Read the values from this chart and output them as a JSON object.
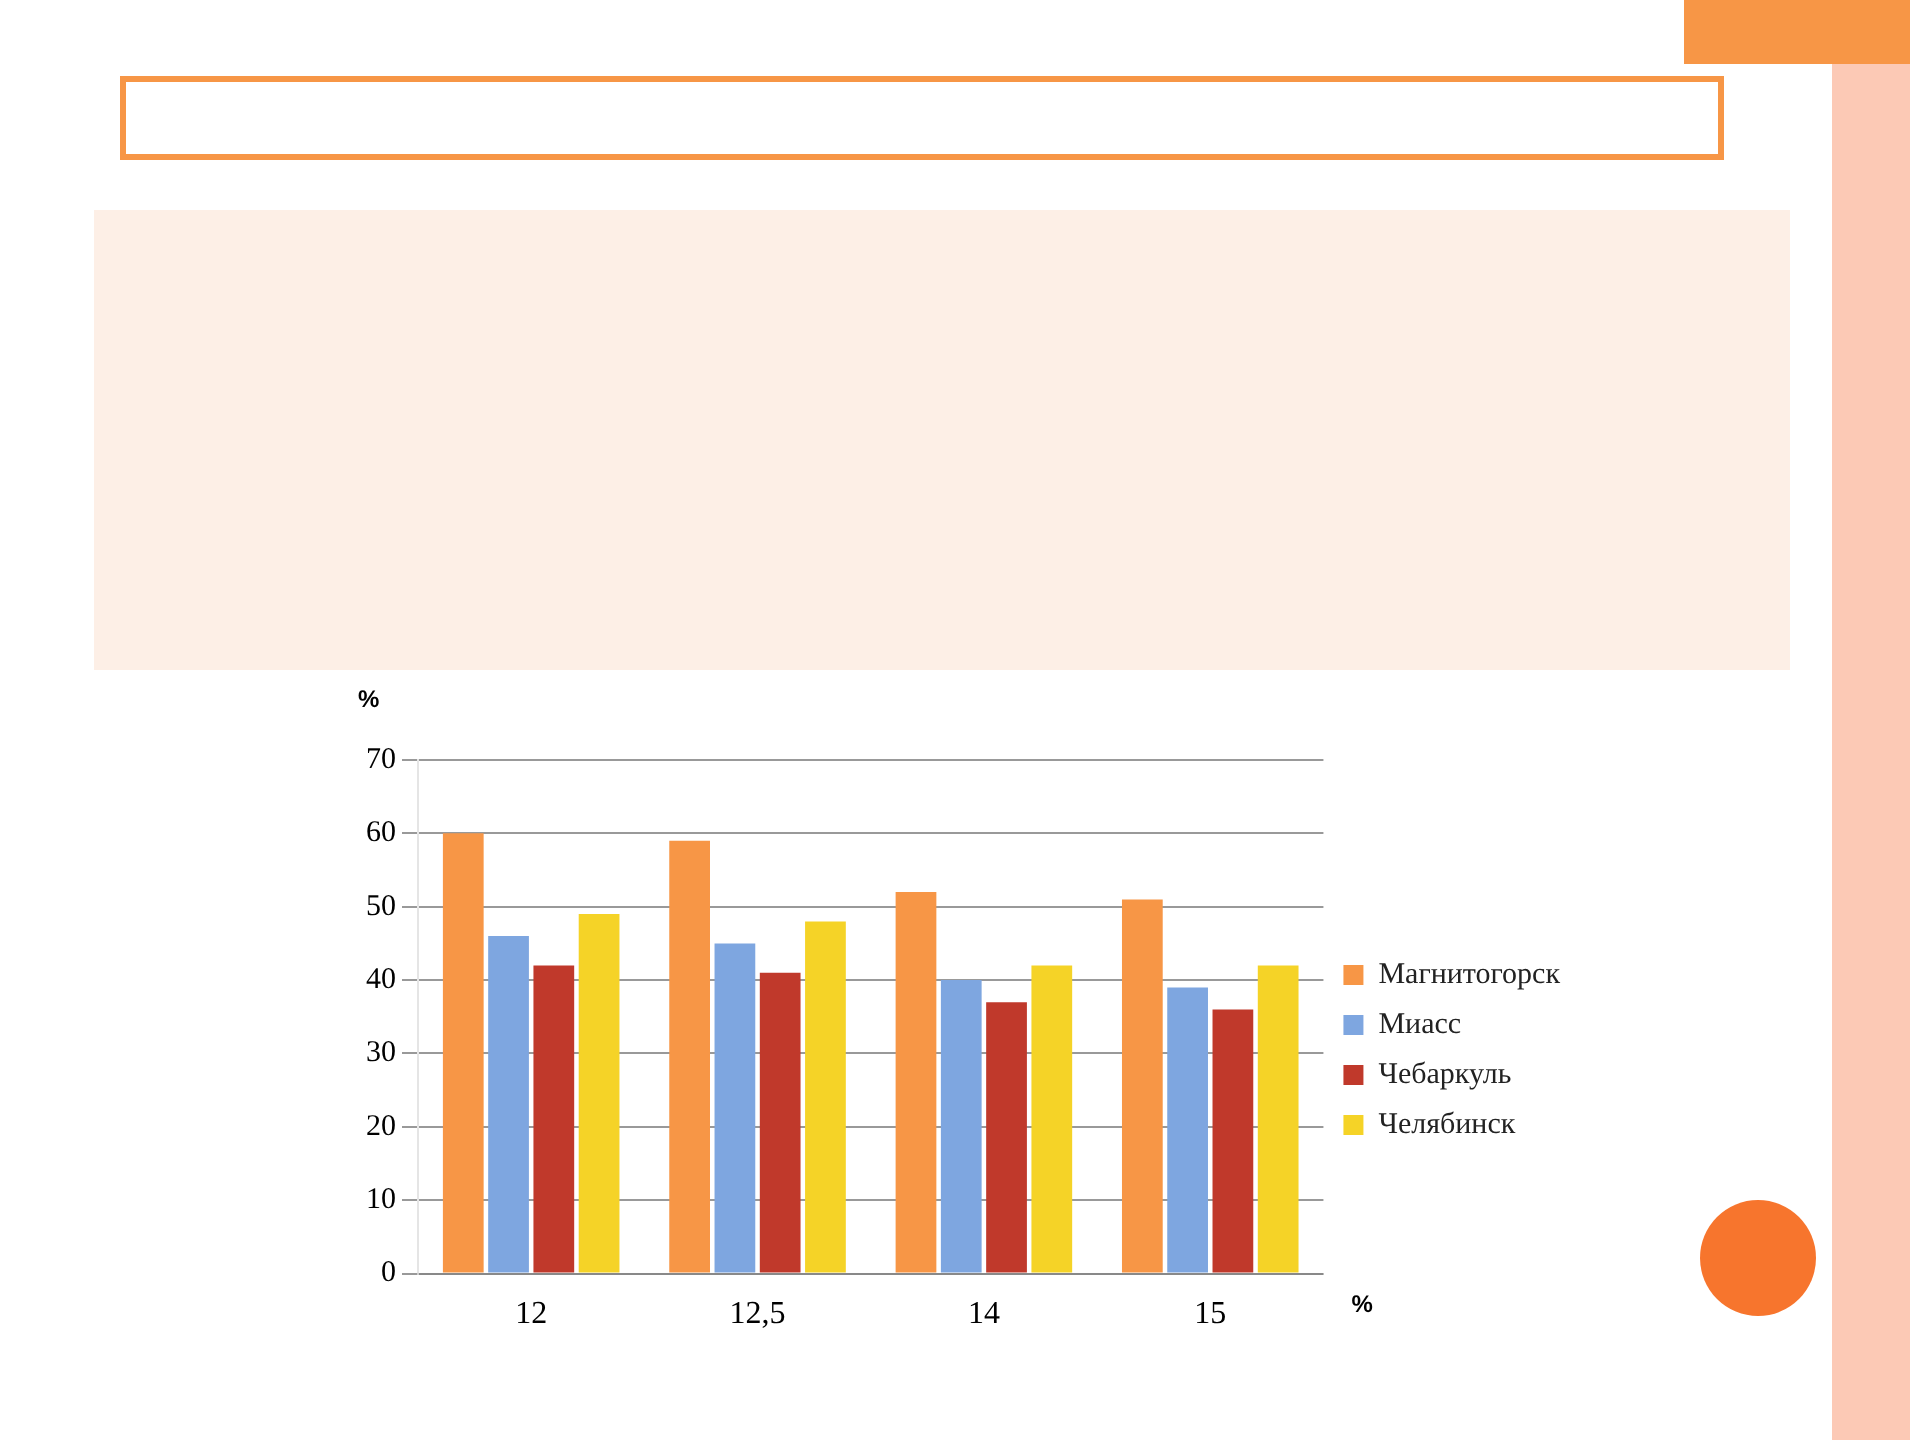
{
  "chart_data": {
    "type": "bar",
    "categories": [
      "12",
      "12,5",
      "14",
      "15"
    ],
    "xlabel": "%",
    "ylabel": "%",
    "series": [
      {
        "name": "Магнитогорск",
        "color": "#f79646",
        "values": [
          60,
          59,
          52,
          51
        ]
      },
      {
        "name": "Миасс",
        "color": "#7ea6e0",
        "values": [
          46,
          45,
          40,
          39
        ]
      },
      {
        "name": "Чебаркуль",
        "color": "#c0392b",
        "values": [
          42,
          41,
          37,
          36
        ]
      },
      {
        "name": "Челябинск",
        "color": "#f5d327",
        "values": [
          49,
          48,
          42,
          42
        ]
      }
    ],
    "ylim": [
      0,
      70
    ],
    "yticks": [
      0,
      10,
      20,
      30,
      40,
      50,
      60,
      70
    ],
    "grid": "y",
    "legend": "right"
  }
}
